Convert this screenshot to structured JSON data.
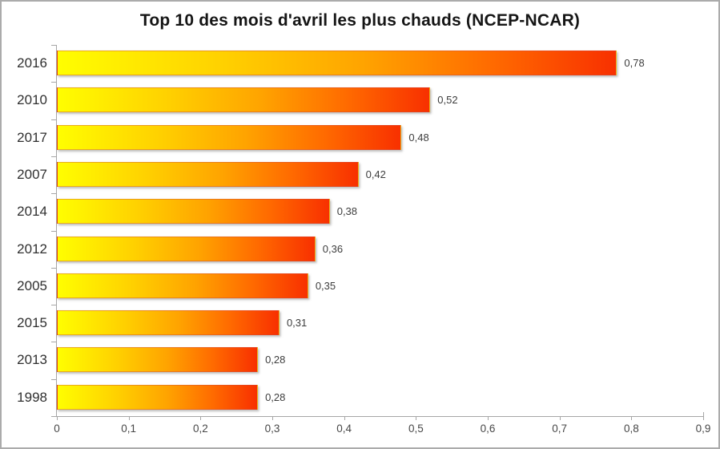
{
  "chart_data": {
    "type": "bar",
    "orientation": "horizontal",
    "title": "Top 10 des mois d'avril les plus chauds (NCEP-NCAR)",
    "categories": [
      "2016",
      "2010",
      "2017",
      "2007",
      "2014",
      "2012",
      "2005",
      "2015",
      "2013",
      "1998"
    ],
    "values": [
      0.78,
      0.52,
      0.48,
      0.42,
      0.38,
      0.36,
      0.35,
      0.31,
      0.28,
      0.28
    ],
    "value_labels": [
      "0,78",
      "0,52",
      "0,48",
      "0,42",
      "0,38",
      "0,36",
      "0,35",
      "0,31",
      "0,28",
      "0,28"
    ],
    "xlabel": "",
    "ylabel": "",
    "xlim": [
      0,
      0.9
    ],
    "x_ticks": [
      0,
      0.1,
      0.2,
      0.3,
      0.4,
      0.5,
      0.6,
      0.7,
      0.8,
      0.9
    ],
    "x_tick_labels": [
      "0",
      "0,1",
      "0,2",
      "0,3",
      "0,4",
      "0,5",
      "0,6",
      "0,7",
      "0,8",
      "0,9"
    ],
    "decimal_separator": ",",
    "grid": false,
    "legend": null,
    "data_labels_shown": true,
    "bar_gradient": [
      "#FFFE00",
      "#FFD000",
      "#FFA300",
      "#FF6A00",
      "#F83000"
    ],
    "axis_color": "#A6A6A6",
    "frame_color": "#ABABAB"
  }
}
